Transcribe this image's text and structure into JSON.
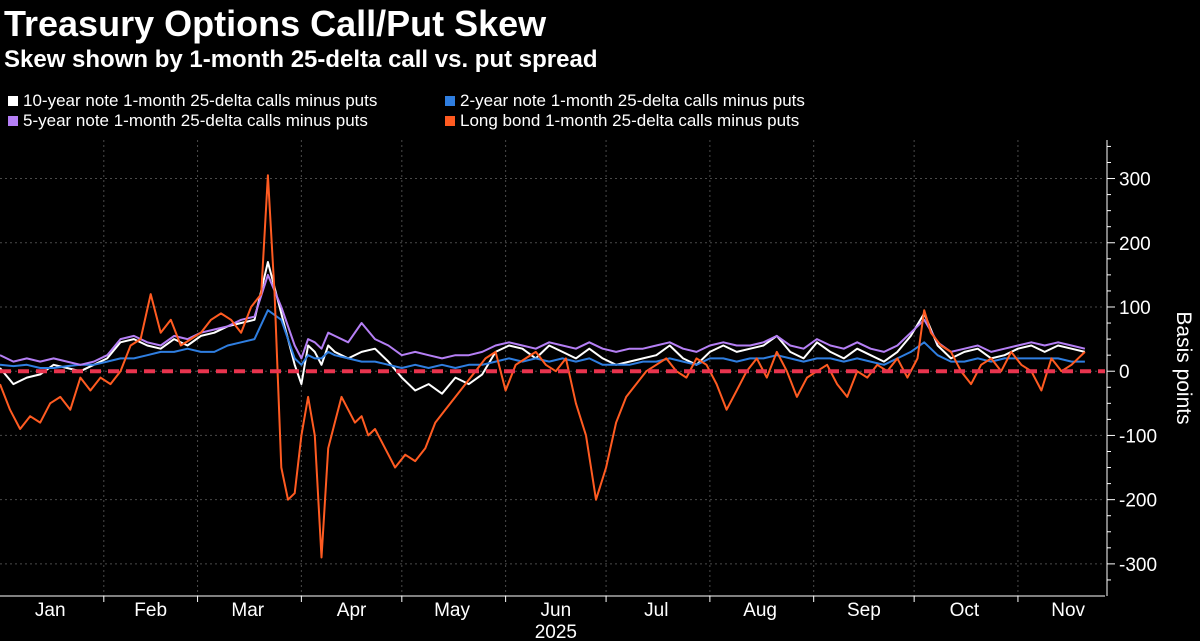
{
  "chart_data": {
    "type": "line",
    "title": "Treasury Options Call/Put Skew",
    "subtitle": "Skew shown by 1-month 25-delta call vs. put spread",
    "ylabel": "Basis points",
    "xlabel": "2025",
    "ylim": [
      -350,
      360
    ],
    "yticks": [
      -300,
      -200,
      -100,
      0,
      100,
      200,
      300
    ],
    "ytick_labels": [
      "-300",
      "-200",
      "-100",
      "0",
      "100",
      "200",
      "300"
    ],
    "x_domain": [
      0,
      330
    ],
    "months": [
      {
        "label": "Jan",
        "start": 0,
        "center": 15
      },
      {
        "label": "Feb",
        "start": 31,
        "center": 45
      },
      {
        "label": "Mar",
        "start": 59,
        "center": 74
      },
      {
        "label": "Apr",
        "start": 90,
        "center": 105
      },
      {
        "label": "May",
        "start": 120,
        "center": 135
      },
      {
        "label": "Jun",
        "start": 151,
        "center": 166
      },
      {
        "label": "Jul",
        "start": 181,
        "center": 196
      },
      {
        "label": "Aug",
        "start": 212,
        "center": 227
      },
      {
        "label": "Sep",
        "start": 243,
        "center": 258
      },
      {
        "label": "Oct",
        "start": 273,
        "center": 288
      },
      {
        "label": "Nov",
        "start": 304,
        "center": 319
      }
    ],
    "year_label": "2025",
    "zero_line": {
      "value": 0,
      "color": "#e8344e",
      "style": "dashed"
    },
    "grid": true,
    "series": [
      {
        "name": "10-year note 1-month 25-delta calls minus puts",
        "color": "#ffffff",
        "x": [
          0,
          4,
          8,
          12,
          16,
          20,
          24,
          28,
          32,
          36,
          40,
          44,
          48,
          52,
          56,
          60,
          64,
          68,
          72,
          76,
          80,
          84,
          88,
          90,
          92,
          94,
          96,
          98,
          100,
          104,
          108,
          112,
          116,
          120,
          124,
          128,
          132,
          136,
          140,
          144,
          148,
          152,
          156,
          160,
          164,
          168,
          172,
          176,
          180,
          184,
          188,
          192,
          196,
          200,
          204,
          208,
          212,
          216,
          220,
          224,
          228,
          232,
          236,
          240,
          244,
          248,
          252,
          256,
          260,
          264,
          268,
          272,
          276,
          280,
          284,
          288,
          292,
          296,
          300,
          304,
          308,
          312,
          316,
          320,
          324
        ],
        "values": [
          5,
          -20,
          -10,
          -5,
          10,
          5,
          0,
          10,
          20,
          45,
          50,
          40,
          35,
          50,
          40,
          55,
          60,
          70,
          75,
          80,
          170,
          90,
          10,
          -20,
          40,
          30,
          10,
          40,
          30,
          20,
          30,
          35,
          15,
          -10,
          -30,
          -20,
          -35,
          -10,
          -20,
          -5,
          30,
          40,
          35,
          20,
          40,
          30,
          20,
          35,
          20,
          10,
          15,
          20,
          25,
          40,
          20,
          10,
          30,
          40,
          30,
          35,
          40,
          55,
          30,
          20,
          45,
          30,
          20,
          35,
          25,
          15,
          30,
          55,
          90,
          40,
          20,
          30,
          35,
          20,
          25,
          35,
          40,
          30,
          40,
          35,
          30
        ]
      },
      {
        "name": "2-year note 1-month 25-delta calls minus puts",
        "color": "#2f7ee0",
        "x": [
          0,
          4,
          8,
          12,
          16,
          20,
          24,
          28,
          32,
          36,
          40,
          44,
          48,
          52,
          56,
          60,
          64,
          68,
          72,
          76,
          80,
          84,
          88,
          90,
          92,
          94,
          96,
          98,
          100,
          104,
          108,
          112,
          116,
          120,
          124,
          128,
          132,
          136,
          140,
          144,
          148,
          152,
          156,
          160,
          164,
          168,
          172,
          176,
          180,
          184,
          188,
          192,
          196,
          200,
          204,
          208,
          212,
          216,
          220,
          224,
          228,
          232,
          236,
          240,
          244,
          248,
          252,
          256,
          260,
          264,
          268,
          272,
          276,
          280,
          284,
          288,
          292,
          296,
          300,
          304,
          308,
          312,
          316,
          320,
          324
        ],
        "values": [
          10,
          8,
          10,
          5,
          5,
          8,
          10,
          10,
          15,
          20,
          20,
          25,
          30,
          30,
          35,
          30,
          30,
          40,
          45,
          50,
          95,
          80,
          20,
          10,
          25,
          20,
          20,
          30,
          25,
          20,
          15,
          15,
          10,
          5,
          10,
          5,
          10,
          5,
          10,
          10,
          15,
          20,
          15,
          20,
          15,
          20,
          15,
          20,
          10,
          10,
          10,
          15,
          15,
          20,
          15,
          10,
          20,
          20,
          15,
          20,
          20,
          25,
          20,
          15,
          20,
          20,
          15,
          20,
          15,
          10,
          20,
          30,
          45,
          25,
          15,
          15,
          20,
          15,
          20,
          20,
          20,
          20,
          20,
          15,
          15
        ]
      },
      {
        "name": "5-year note 1-month 25-delta calls minus puts",
        "color": "#b57ff5",
        "x": [
          0,
          4,
          8,
          12,
          16,
          20,
          24,
          28,
          32,
          36,
          40,
          44,
          48,
          52,
          56,
          60,
          64,
          68,
          72,
          76,
          80,
          84,
          88,
          90,
          92,
          94,
          96,
          98,
          100,
          104,
          108,
          112,
          116,
          120,
          124,
          128,
          132,
          136,
          140,
          144,
          148,
          152,
          156,
          160,
          164,
          168,
          172,
          176,
          180,
          184,
          188,
          192,
          196,
          200,
          204,
          208,
          212,
          216,
          220,
          224,
          228,
          232,
          236,
          240,
          244,
          248,
          252,
          256,
          260,
          264,
          268,
          272,
          276,
          280,
          284,
          288,
          292,
          296,
          300,
          304,
          308,
          312,
          316,
          320,
          324
        ],
        "values": [
          25,
          15,
          20,
          15,
          20,
          15,
          10,
          15,
          25,
          50,
          55,
          45,
          40,
          55,
          50,
          60,
          65,
          70,
          80,
          85,
          150,
          100,
          40,
          20,
          50,
          45,
          35,
          60,
          55,
          45,
          75,
          50,
          40,
          25,
          30,
          25,
          20,
          25,
          25,
          30,
          40,
          45,
          40,
          35,
          45,
          40,
          35,
          45,
          35,
          30,
          35,
          35,
          40,
          45,
          35,
          30,
          40,
          45,
          40,
          40,
          45,
          55,
          40,
          35,
          50,
          40,
          35,
          45,
          35,
          30,
          40,
          60,
          80,
          45,
          30,
          35,
          40,
          30,
          35,
          40,
          45,
          40,
          45,
          40,
          35
        ]
      },
      {
        "name": "Long bond 1-month 25-delta calls minus puts",
        "color": "#ff5b21",
        "x": [
          0,
          3,
          6,
          9,
          12,
          15,
          18,
          21,
          24,
          27,
          30,
          33,
          36,
          39,
          42,
          45,
          48,
          51,
          54,
          57,
          60,
          63,
          66,
          69,
          72,
          75,
          78,
          80,
          82,
          84,
          86,
          88,
          90,
          92,
          94,
          96,
          98,
          100,
          102,
          104,
          106,
          108,
          110,
          112,
          115,
          118,
          121,
          124,
          127,
          130,
          133,
          136,
          139,
          142,
          145,
          148,
          151,
          154,
          157,
          160,
          163,
          166,
          169,
          172,
          175,
          178,
          181,
          184,
          187,
          190,
          193,
          196,
          199,
          202,
          205,
          208,
          211,
          214,
          217,
          220,
          223,
          226,
          229,
          232,
          235,
          238,
          241,
          244,
          247,
          250,
          253,
          256,
          259,
          262,
          265,
          268,
          271,
          274,
          276,
          278,
          281,
          284,
          287,
          290,
          293,
          296,
          299,
          302,
          305,
          308,
          311,
          314,
          317,
          320,
          324
        ],
        "values": [
          -20,
          -60,
          -90,
          -70,
          -80,
          -50,
          -40,
          -60,
          -10,
          -30,
          -10,
          -20,
          0,
          40,
          50,
          120,
          60,
          80,
          40,
          50,
          60,
          80,
          90,
          80,
          60,
          100,
          120,
          305,
          120,
          -150,
          -200,
          -190,
          -100,
          -40,
          -100,
          -290,
          -120,
          -80,
          -40,
          -60,
          -80,
          -70,
          -100,
          -90,
          -120,
          -150,
          -130,
          -140,
          -120,
          -80,
          -60,
          -40,
          -20,
          0,
          20,
          30,
          -30,
          10,
          20,
          30,
          10,
          0,
          20,
          -50,
          -100,
          -200,
          -150,
          -80,
          -40,
          -20,
          0,
          10,
          20,
          0,
          -10,
          20,
          10,
          -20,
          -60,
          -30,
          0,
          20,
          -10,
          30,
          0,
          -40,
          -10,
          0,
          10,
          -20,
          -40,
          0,
          -10,
          10,
          0,
          20,
          -10,
          20,
          95,
          60,
          40,
          30,
          0,
          -20,
          10,
          20,
          0,
          30,
          10,
          0,
          -30,
          20,
          0,
          10,
          30
        ]
      }
    ]
  },
  "legend": [
    {
      "label": "10-year note 1-month 25-delta calls minus puts",
      "color": "#ffffff"
    },
    {
      "label": "2-year note 1-month 25-delta calls minus puts",
      "color": "#2f7ee0"
    },
    {
      "label": "5-year note 1-month 25-delta calls minus puts",
      "color": "#b57ff5"
    },
    {
      "label": "Long bond 1-month 25-delta calls minus puts",
      "color": "#ff5b21"
    }
  ],
  "colors": {
    "background": "#000000",
    "grid": "#4a4a4a",
    "axis": "#ffffff",
    "zero_line": "#e8344e"
  }
}
